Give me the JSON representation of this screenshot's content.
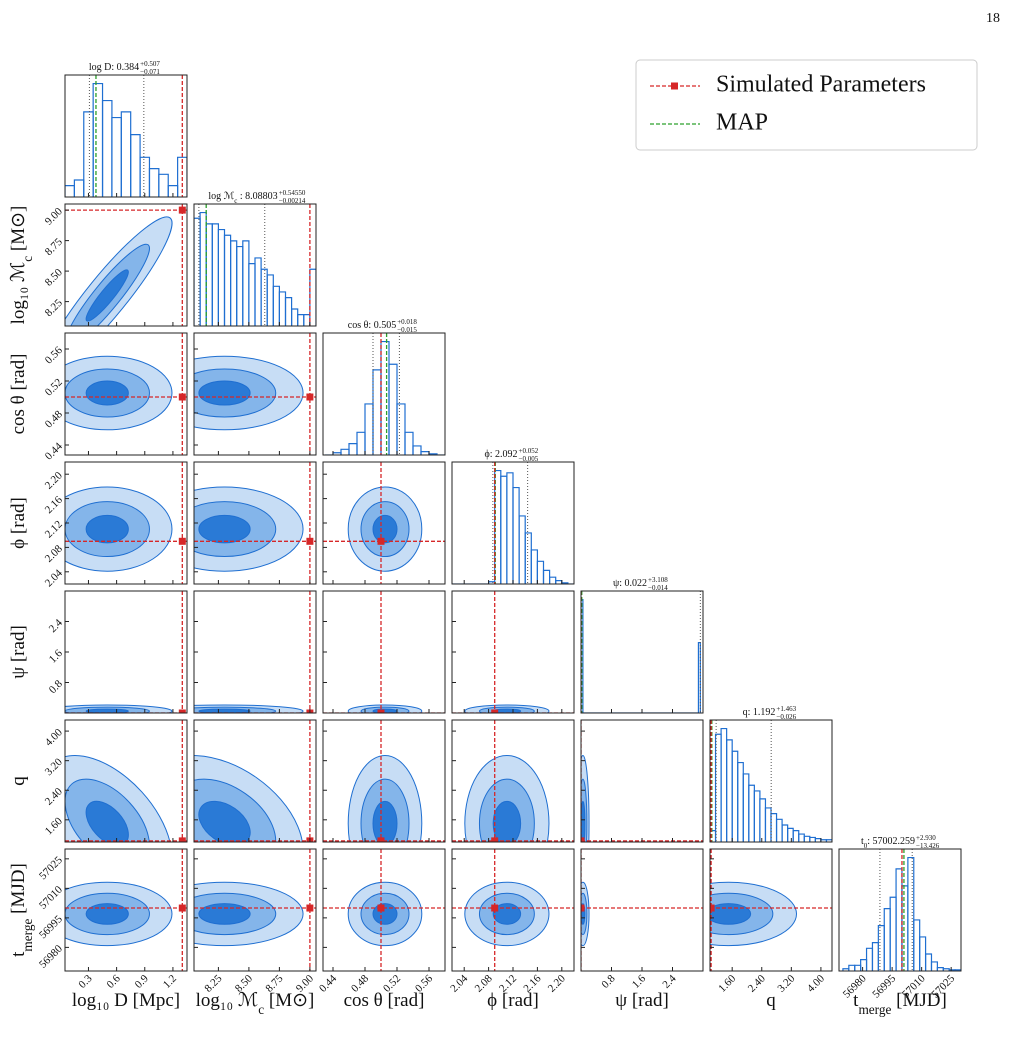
{
  "page_number": "18",
  "chart_data": {
    "type": "corner",
    "legend": {
      "position": "upper right",
      "series": [
        {
          "name": "Simulated Parameters",
          "color": "#d62728",
          "marker": "square"
        },
        {
          "name": "MAP",
          "color": "#2ca02c"
        }
      ]
    },
    "hist_color": "#1f6fd1",
    "parameters": [
      {
        "label": {
          "text": "log₁₀ D",
          "unit": " [Mpc]"
        },
        "title": {
          "name": "log D",
          "value": ": 0.384",
          "plus": "+0.507",
          "minus": "−0.071"
        },
        "lim": [
          0.05,
          1.35
        ],
        "ticks": [
          0.3,
          0.6,
          0.9,
          1.2
        ],
        "truth": 1.3,
        "map": 0.38,
        "quantiles": [
          0.31,
          0.89
        ],
        "bins": [
          0.05,
          0.15,
          0.25,
          0.35,
          0.45,
          0.55,
          0.65,
          0.75,
          0.85,
          0.95,
          1.05,
          1.15,
          1.25,
          1.35
        ],
        "values": [
          0.1,
          0.15,
          0.75,
          1.0,
          0.85,
          0.7,
          0.75,
          0.55,
          0.35,
          0.25,
          0.2,
          0.1,
          0.35
        ]
      },
      {
        "label": {
          "text": "log₁₀ ℳ",
          "sub": "c",
          "unit": " [M⊙]"
        },
        "title": {
          "name": "log ℳ",
          "sub": "c",
          "value": " : 8.08803",
          "plus": "+0.54550",
          "minus": "−0.00214"
        },
        "lim": [
          8.05,
          9.05
        ],
        "ticks": [
          {
            "value": 8.25,
            "label": "8.25"
          },
          {
            "value": 8.5,
            "label": "8.50"
          },
          {
            "value": 8.75,
            "label": "8.75"
          },
          {
            "value": 9,
            "label": "9.00"
          }
        ],
        "truth": 9.0,
        "map": 8.15,
        "quantiles": [
          8.09,
          8.63
        ],
        "bins": [
          8.05,
          8.1,
          8.15,
          8.2,
          8.25,
          8.3,
          8.35,
          8.4,
          8.45,
          8.5,
          8.55,
          8.6,
          8.65,
          8.7,
          8.75,
          8.8,
          8.85,
          8.9,
          8.95,
          9.0,
          9.05
        ],
        "values": [
          0.95,
          1.0,
          0.9,
          0.9,
          0.85,
          0.8,
          0.75,
          0.7,
          0.75,
          0.55,
          0.6,
          0.5,
          0.45,
          0.35,
          0.3,
          0.25,
          0.15,
          0.1,
          0.1,
          0.5
        ]
      },
      {
        "label": {
          "text": "cos θ",
          "unit": " [rad]"
        },
        "title": {
          "name": "cos θ",
          "value": ": 0.505",
          "plus": "+0.018",
          "minus": "−0.015"
        },
        "lim": [
          0.4275,
          0.58
        ],
        "ticks": [
          0.44,
          0.48,
          0.52,
          0.56
        ],
        "truth": 0.5,
        "map": 0.507,
        "quantiles": [
          0.49,
          0.523
        ],
        "bins": [
          0.43,
          0.44,
          0.45,
          0.46,
          0.47,
          0.48,
          0.49,
          0.5,
          0.51,
          0.52,
          0.53,
          0.54,
          0.55,
          0.56,
          0.57,
          0.58
        ],
        "values": [
          0,
          0.02,
          0.05,
          0.1,
          0.2,
          0.45,
          0.75,
          1.0,
          0.8,
          0.45,
          0.2,
          0.08,
          0.03,
          0.01,
          0
        ]
      },
      {
        "label": {
          "text": "ϕ",
          "unit": " [rad]"
        },
        "title": {
          "name": "ϕ",
          "value": ": 2.092",
          "plus": "+0.052",
          "minus": "−0.005"
        },
        "lim": [
          2.02,
          2.22
        ],
        "ticks": [
          2.04,
          2.08,
          2.12,
          2.16,
          {
            "value": 2.2,
            "label": "2.20"
          }
        ],
        "truth": 2.09,
        "map": 2.091,
        "quantiles": [
          2.087,
          2.144
        ],
        "bins": [
          2.02,
          2.03,
          2.04,
          2.05,
          2.06,
          2.07,
          2.08,
          2.09,
          2.1,
          2.11,
          2.12,
          2.13,
          2.14,
          2.15,
          2.16,
          2.17,
          2.18,
          2.19,
          2.2,
          2.21,
          2.22
        ],
        "values": [
          0,
          0,
          0,
          0,
          0,
          0,
          0.02,
          1.0,
          0.95,
          0.98,
          0.85,
          0.6,
          0.45,
          0.3,
          0.2,
          0.12,
          0.06,
          0.03,
          0.01,
          0
        ]
      },
      {
        "label": {
          "text": "ψ",
          "unit": " [rad]"
        },
        "title": {
          "name": "ψ",
          "value": ": 0.022",
          "plus": "+3.108",
          "minus": "−0.014"
        },
        "lim": [
          0,
          3.2
        ],
        "ticks": [
          0.8,
          1.6,
          2.4
        ],
        "truth": 0,
        "map": 0.02,
        "quantiles": [
          0.008,
          3.13
        ],
        "bins": [
          0,
          0.05,
          3.08,
          3.13
        ],
        "values": [
          1.0,
          0,
          0.62
        ]
      },
      {
        "label": {
          "text": "q"
        },
        "title": {
          "name": "q",
          "value": ": 1.192",
          "plus": "+1.463",
          "minus": "−0.026"
        },
        "lim": [
          1.0,
          4.3
        ],
        "ticks": [
          {
            "value": 1.6,
            "label": "1.60"
          },
          {
            "value": 2.4,
            "label": "2.40"
          },
          {
            "value": 3.2,
            "label": "3.20"
          },
          {
            "value": 4,
            "label": "4.00"
          }
        ],
        "truth": 1.03,
        "map": 1.05,
        "quantiles": [
          1.166,
          2.655
        ],
        "bins": [
          1.0,
          1.15,
          1.3,
          1.45,
          1.6,
          1.75,
          1.9,
          2.05,
          2.2,
          2.35,
          2.5,
          2.65,
          2.8,
          2.95,
          3.1,
          3.25,
          3.4,
          3.55,
          3.7,
          3.85,
          4.0,
          4.15,
          4.3
        ],
        "values": [
          0.1,
          0.95,
          1.0,
          0.9,
          0.8,
          0.7,
          0.6,
          0.5,
          0.45,
          0.38,
          0.3,
          0.25,
          0.2,
          0.15,
          0.12,
          0.1,
          0.07,
          0.05,
          0.04,
          0.03,
          0.02,
          0.02
        ]
      },
      {
        "label": {
          "text": "t",
          "sub": "merge",
          "unit": " [MJD]"
        },
        "title": {
          "name": "t",
          "sub": "0",
          "value": ": 57002.259",
          "plus": "+2.930",
          "minus": "−13.426"
        },
        "lim": [
          56968,
          57030
        ],
        "ticks": [
          56980,
          56995,
          57010,
          57025
        ],
        "truth": 57000,
        "map": 57001,
        "quantiles": [
          56988.8,
          57005.2
        ],
        "bins": [
          56970,
          56973,
          56976,
          56979,
          56982,
          56985,
          56988,
          56991,
          56994,
          56997,
          57000,
          57003,
          57006,
          57009,
          57012,
          57015,
          57018,
          57021,
          57024,
          57027,
          57030
        ],
        "values": [
          0.02,
          0.05,
          0.05,
          0.1,
          0.2,
          0.25,
          0.4,
          0.55,
          0.65,
          0.9,
          0.75,
          1.0,
          0.45,
          0.3,
          0.15,
          0.08,
          0.03,
          0.02,
          0.01,
          0.01
        ]
      }
    ],
    "contours": {
      "centers": [
        0.5,
        8.3,
        0.505,
        2.11,
        0.05,
        1.5,
        56997
      ],
      "spreads": [
        0.3,
        0.28,
        0.02,
        0.03,
        0.07,
        0.8,
        7
      ],
      "correlations": [
        {
          "pair": [
            0,
            1
          ],
          "r": 0.92
        },
        {
          "pair": [
            0,
            5
          ],
          "r": -0.5
        },
        {
          "pair": [
            1,
            5
          ],
          "r": -0.4
        }
      ]
    }
  }
}
